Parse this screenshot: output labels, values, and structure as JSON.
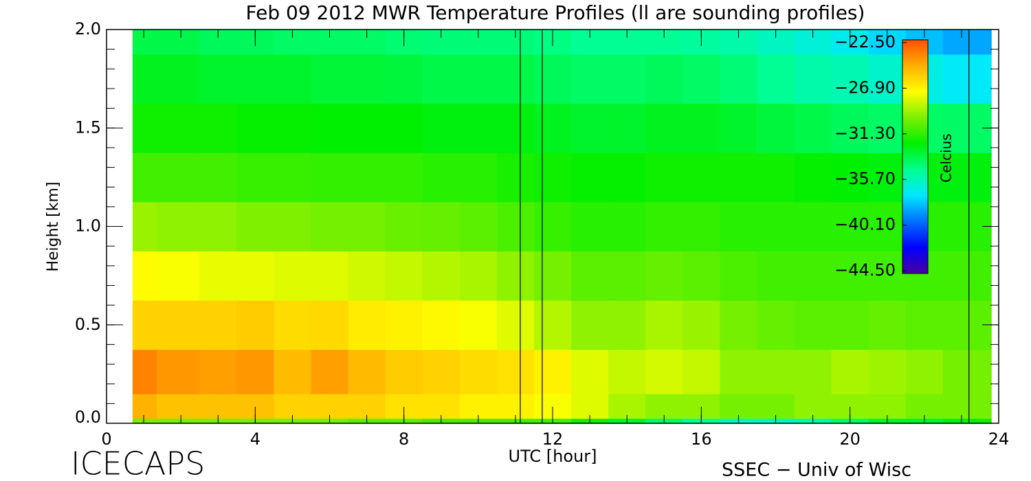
{
  "chart_data": {
    "type": "heatmap",
    "title": "Feb 09 2012 MWR Temperature Profiles (ll are sounding profiles)",
    "xlabel": "UTC [hour]",
    "ylabel": "Height [km]",
    "colorbar_label": "Celcius",
    "footer_left": "ICECAPS",
    "footer_right": "SSEC − Univ of Wisc",
    "xlim": [
      0,
      24
    ],
    "xticks": [
      0,
      4,
      8,
      12,
      16,
      20,
      24
    ],
    "xminor": 1,
    "ylim": [
      0,
      2
    ],
    "yticks": [
      {
        "value": 0,
        "label": "0.0"
      },
      0.5,
      {
        "value": 1,
        "label": "1.0"
      },
      1.5,
      {
        "value": 2,
        "label": "2.0"
      }
    ],
    "yminor": 0.1,
    "zlim": [
      -44.5,
      -22.5
    ],
    "zticks": [
      {
        "value": -22.5,
        "label": "−22.50"
      },
      {
        "value": -26.9,
        "label": "−26.90"
      },
      {
        "value": -31.3,
        "label": "−31.30"
      },
      {
        "value": -35.7,
        "label": "−35.70"
      },
      {
        "value": -40.1,
        "label": "−40.10"
      },
      {
        "value": -44.5,
        "label": "−44.50"
      }
    ],
    "colormap": [
      "#4a00a0",
      "#0000ff",
      "#0070ff",
      "#00e8ff",
      "#00ff90",
      "#00f000",
      "#7cf000",
      "#ffff00",
      "#ffb000",
      "#ff5000"
    ],
    "soundings": [
      11.13,
      11.72,
      23.2
    ],
    "x": [
      0.7,
      2,
      3,
      4,
      5,
      6,
      7,
      8,
      9,
      10,
      11,
      12,
      13,
      14,
      15,
      16,
      17,
      18,
      19,
      20,
      21,
      22,
      23,
      23.8
    ],
    "y": [
      0,
      0.05,
      0.25,
      0.5,
      0.75,
      1,
      1.25,
      1.5,
      1.75,
      2
    ],
    "z": [
      [
        -30,
        -30,
        -30,
        -30,
        -30,
        -30,
        -30.5,
        -30.5,
        -31,
        -31,
        -31,
        -31,
        -32,
        -33,
        -34,
        -35,
        -36,
        -36,
        -35.5,
        -34,
        -33,
        -33,
        -32.5,
        -32
      ],
      [
        -25,
        -25.5,
        -25.5,
        -25.5,
        -26,
        -26,
        -26,
        -26.5,
        -26.5,
        -27,
        -27,
        -27.5,
        -28,
        -29,
        -29.5,
        -29.5,
        -30,
        -30,
        -29.5,
        -29.5,
        -29.5,
        -30,
        -30,
        -30
      ],
      [
        -23.8,
        -24.3,
        -24.5,
        -24.3,
        -25.3,
        -24.5,
        -25.3,
        -25.8,
        -26,
        -26.3,
        -26.5,
        -27,
        -28,
        -28.5,
        -28.2,
        -28.5,
        -29.5,
        -29.5,
        -29.5,
        -29,
        -29.2,
        -29.5,
        -30,
        -30
      ],
      [
        -26,
        -26,
        -26,
        -25.8,
        -26.3,
        -26.2,
        -26.8,
        -27,
        -27.2,
        -27.5,
        -28,
        -28.8,
        -29.5,
        -29.5,
        -29,
        -29.3,
        -30,
        -30.3,
        -30.5,
        -30.5,
        -30.3,
        -30.5,
        -30.5,
        -30.5
      ],
      [
        -27.3,
        -27.5,
        -27.8,
        -27.8,
        -28,
        -28,
        -28.3,
        -28.5,
        -28.8,
        -29,
        -29.5,
        -30,
        -30.5,
        -30.5,
        -30.3,
        -30.5,
        -30.8,
        -31,
        -31,
        -31,
        -31,
        -31,
        -31,
        -31
      ],
      [
        -29.3,
        -29.5,
        -29.5,
        -29.8,
        -29.8,
        -30,
        -30,
        -30.2,
        -30.3,
        -30.5,
        -30.8,
        -31.2,
        -31.5,
        -31.5,
        -31.3,
        -31.3,
        -31.5,
        -31.5,
        -31.5,
        -31.5,
        -31.5,
        -31.5,
        -31.5,
        -31.5
      ],
      [
        -31,
        -31,
        -31,
        -31.2,
        -31.2,
        -31.3,
        -31.3,
        -31.3,
        -31.5,
        -31.5,
        -31.8,
        -32,
        -32.2,
        -32.2,
        -32,
        -32,
        -32,
        -32,
        -32.2,
        -32.3,
        -32.5,
        -32.5,
        -32.5,
        -32.5
      ],
      [
        -32,
        -32,
        -32,
        -32.2,
        -32.2,
        -32.3,
        -32.3,
        -32.3,
        -32.5,
        -32.5,
        -32.5,
        -32.8,
        -33,
        -33,
        -32.8,
        -32.8,
        -33,
        -33.3,
        -33.5,
        -33.8,
        -34,
        -34,
        -34,
        -34
      ],
      [
        -32.8,
        -32.8,
        -33,
        -33,
        -33,
        -33.2,
        -33.2,
        -33.3,
        -33.5,
        -33.5,
        -33.5,
        -33.8,
        -34,
        -34,
        -33.8,
        -34,
        -34.3,
        -34.8,
        -35.3,
        -35.5,
        -36,
        -36.5,
        -37,
        -37
      ],
      [
        -33.5,
        -33.5,
        -33.8,
        -33.8,
        -34,
        -34,
        -34,
        -34.2,
        -34.3,
        -34.3,
        -34.3,
        -34.5,
        -34.8,
        -34.8,
        -34.8,
        -35,
        -35.3,
        -35.8,
        -36.3,
        -36.8,
        -37.5,
        -38,
        -38.5,
        -38.5
      ]
    ]
  }
}
